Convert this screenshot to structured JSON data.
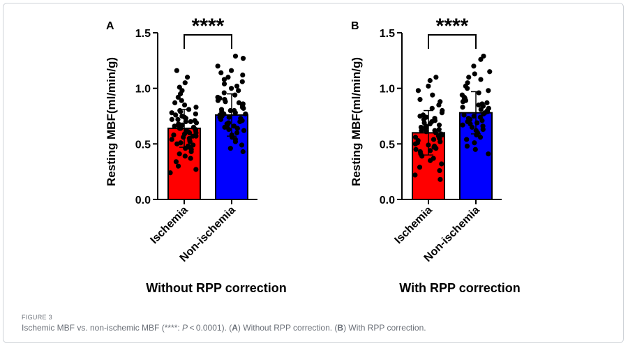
{
  "figure": {
    "label": "FIGURE 3",
    "caption_parts": [
      "Ischemic MBF vs. non-ischemic MBF (****: ",
      "P",
      " < 0.0001). (",
      "A",
      ") Without RPP correction. (",
      "B",
      ") With RPP correction."
    ]
  },
  "chart_data": [
    {
      "type": "bar",
      "panel": "A",
      "xlabel": "Without RPP correction",
      "ylabel": "Resting MBF(ml/min/g)",
      "ylim": [
        0,
        1.5
      ],
      "yticks": [
        "0.0",
        "0.5",
        "1.0",
        "1.5"
      ],
      "categories": [
        "Ischemia",
        "Non-ischemia"
      ],
      "values": [
        0.64,
        0.76
      ],
      "sd": [
        0.17,
        0.19
      ],
      "bar_colors": [
        "#ff0000",
        "#0000ff"
      ],
      "significance": "****",
      "points": [
        [
          0.24,
          0.27,
          0.3,
          0.34,
          0.37,
          0.39,
          0.41,
          0.43,
          0.45,
          0.46,
          0.47,
          0.48,
          0.49,
          0.5,
          0.51,
          0.52,
          0.53,
          0.54,
          0.55,
          0.56,
          0.57,
          0.57,
          0.58,
          0.59,
          0.6,
          0.6,
          0.61,
          0.62,
          0.62,
          0.63,
          0.64,
          0.64,
          0.65,
          0.65,
          0.66,
          0.67,
          0.67,
          0.68,
          0.69,
          0.7,
          0.7,
          0.71,
          0.72,
          0.72,
          0.73,
          0.74,
          0.75,
          0.76,
          0.77,
          0.78,
          0.79,
          0.8,
          0.81,
          0.83,
          0.85,
          0.87,
          0.89,
          0.92,
          0.95,
          0.98,
          1.01,
          1.05,
          1.1,
          1.16
        ],
        [
          0.43,
          0.46,
          0.49,
          0.52,
          0.54,
          0.56,
          0.58,
          0.6,
          0.62,
          0.63,
          0.64,
          0.65,
          0.66,
          0.67,
          0.68,
          0.69,
          0.7,
          0.71,
          0.72,
          0.73,
          0.74,
          0.74,
          0.75,
          0.76,
          0.77,
          0.77,
          0.78,
          0.79,
          0.8,
          0.8,
          0.81,
          0.82,
          0.83,
          0.84,
          0.85,
          0.86,
          0.87,
          0.88,
          0.89,
          0.9,
          0.91,
          0.92,
          0.94,
          0.96,
          0.98,
          1.0,
          1.02,
          1.04,
          1.06,
          1.08,
          1.1,
          1.12,
          1.14,
          1.16,
          1.2,
          1.27,
          1.29
        ]
      ]
    },
    {
      "type": "bar",
      "panel": "B",
      "xlabel": "With RPP correction",
      "ylabel": "Resting MBF(ml/min/g)",
      "ylim": [
        0,
        1.5
      ],
      "yticks": [
        "0.0",
        "0.5",
        "1.0",
        "1.5"
      ],
      "categories": [
        "Ischemia",
        "Non-ischemia"
      ],
      "values": [
        0.6,
        0.78
      ],
      "sd": [
        0.2,
        0.19
      ],
      "bar_colors": [
        "#ff0000",
        "#0000ff"
      ],
      "significance": "****",
      "points": [
        [
          0.18,
          0.22,
          0.26,
          0.29,
          0.32,
          0.35,
          0.37,
          0.39,
          0.41,
          0.43,
          0.44,
          0.45,
          0.46,
          0.47,
          0.48,
          0.49,
          0.5,
          0.51,
          0.52,
          0.53,
          0.54,
          0.55,
          0.56,
          0.57,
          0.57,
          0.58,
          0.59,
          0.6,
          0.61,
          0.62,
          0.62,
          0.63,
          0.64,
          0.65,
          0.66,
          0.67,
          0.68,
          0.69,
          0.7,
          0.71,
          0.72,
          0.73,
          0.74,
          0.75,
          0.76,
          0.78,
          0.8,
          0.82,
          0.85,
          0.88,
          0.9,
          0.94,
          0.98,
          1.02,
          1.07,
          1.1
        ],
        [
          0.41,
          0.45,
          0.48,
          0.51,
          0.54,
          0.56,
          0.58,
          0.6,
          0.62,
          0.63,
          0.65,
          0.66,
          0.67,
          0.68,
          0.69,
          0.7,
          0.71,
          0.72,
          0.73,
          0.74,
          0.75,
          0.76,
          0.77,
          0.78,
          0.79,
          0.8,
          0.81,
          0.82,
          0.83,
          0.84,
          0.85,
          0.86,
          0.87,
          0.88,
          0.89,
          0.9,
          0.91,
          0.92,
          0.94,
          0.96,
          0.98,
          1.0,
          1.02,
          1.05,
          1.08,
          1.1,
          1.13,
          1.15,
          1.2,
          1.26,
          1.29
        ]
      ]
    }
  ]
}
